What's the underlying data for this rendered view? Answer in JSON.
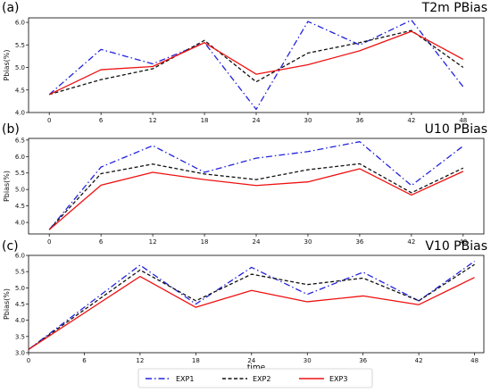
{
  "chart_data": [
    {
      "type": "line",
      "panel_label": "(a)",
      "title": "T2m PBias",
      "ylabel": "Pbias(%)",
      "xlabel": "",
      "x": [
        0,
        6,
        12,
        18,
        24,
        30,
        36,
        42,
        48
      ],
      "xticks": [
        "0",
        "6",
        "12",
        "18",
        "24",
        "30",
        "36",
        "42",
        "48"
      ],
      "xlim": [
        -2.4,
        50.4
      ],
      "ylim": [
        4.0,
        6.1
      ],
      "yticks": [
        "4.0",
        "4.5",
        "5.0",
        "5.5",
        "6.0"
      ],
      "grid": false,
      "series": [
        {
          "name": "EXP1",
          "values": [
            4.4,
            5.4,
            5.08,
            5.55,
            4.07,
            6.02,
            5.5,
            6.05,
            4.57
          ]
        },
        {
          "name": "EXP2",
          "values": [
            4.4,
            4.73,
            4.97,
            5.6,
            4.68,
            5.32,
            5.55,
            5.82,
            5.0
          ]
        },
        {
          "name": "EXP3",
          "values": [
            4.4,
            4.95,
            5.02,
            5.55,
            4.85,
            5.06,
            5.37,
            5.8,
            5.18
          ]
        }
      ]
    },
    {
      "type": "line",
      "panel_label": "(b)",
      "title": "U10 PBias",
      "ylabel": "Pbias(%)",
      "xlabel": "",
      "x": [
        0,
        6,
        12,
        18,
        24,
        30,
        36,
        42,
        48
      ],
      "xticks": [
        "0",
        "6",
        "12",
        "18",
        "24",
        "30",
        "36",
        "42",
        "48"
      ],
      "xlim": [
        -2.4,
        50.4
      ],
      "ylim": [
        3.65,
        6.55
      ],
      "yticks": [
        "4.0",
        "4.5",
        "5.0",
        "5.5",
        "6.0",
        "6.5"
      ],
      "grid": false,
      "series": [
        {
          "name": "EXP1",
          "values": [
            3.78,
            5.68,
            6.33,
            5.52,
            5.95,
            6.15,
            6.45,
            5.12,
            6.32
          ]
        },
        {
          "name": "EXP2",
          "values": [
            3.78,
            5.48,
            5.77,
            5.47,
            5.3,
            5.6,
            5.78,
            4.9,
            5.65
          ]
        },
        {
          "name": "EXP3",
          "values": [
            3.78,
            5.13,
            5.52,
            5.3,
            5.12,
            5.23,
            5.63,
            4.83,
            5.55
          ]
        }
      ]
    },
    {
      "type": "line",
      "panel_label": "(c)",
      "title": "V10 PBias",
      "ylabel": "Pbias(%)",
      "xlabel": "time",
      "x": [
        0,
        12,
        18,
        24,
        30,
        36,
        42,
        48
      ],
      "xticks": [
        "0",
        "6",
        "12",
        "18",
        "24",
        "30",
        "36",
        "42",
        "48"
      ],
      "xlim": [
        0,
        49
      ],
      "ylim": [
        3.0,
        6.0
      ],
      "yticks": [
        "3.0",
        "3.5",
        "4.0",
        "4.5",
        "5.0",
        "5.5",
        "6.0"
      ],
      "grid": false,
      "series": [
        {
          "name": "EXP1",
          "values": [
            3.1,
            5.7,
            4.5,
            5.63,
            4.8,
            5.48,
            4.6,
            5.82
          ]
        },
        {
          "name": "EXP2",
          "values": [
            3.1,
            5.55,
            4.6,
            5.42,
            5.1,
            5.3,
            4.6,
            5.72
          ]
        },
        {
          "name": "EXP3",
          "values": [
            3.1,
            5.35,
            4.4,
            4.92,
            4.57,
            4.75,
            4.48,
            5.32
          ]
        }
      ]
    }
  ],
  "legend": {
    "placement": "bottom-center",
    "entries": [
      {
        "name": "EXP1",
        "color": "#2222dd",
        "dash": "dashdot"
      },
      {
        "name": "EXP2",
        "color": "#111111",
        "dash": "dashed"
      },
      {
        "name": "EXP3",
        "color": "#ee1111",
        "dash": "solid"
      }
    ]
  }
}
